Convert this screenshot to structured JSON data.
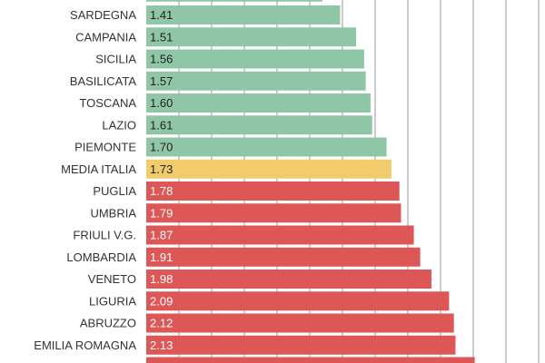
{
  "chart_data": {
    "type": "bar",
    "orientation": "horizontal",
    "title": "",
    "xlabel": "",
    "ylabel": "",
    "xlim": [
      0.2,
      2.3
    ],
    "grid": true,
    "categories": [
      "SARDEGNA",
      "CAMPANIA",
      "SICILIA",
      "BASILICATA",
      "TOSCANA",
      "LAZIO",
      "PIEMONTE",
      "MEDIA ITALIA",
      "PUGLIA",
      "UMBRIA",
      "FRIULI V.G.",
      "LOMBARDIA",
      "VENETO",
      "LIGURIA",
      "ABRUZZO",
      "EMILIA ROMAGNA"
    ],
    "values": [
      1.41,
      1.51,
      1.56,
      1.57,
      1.6,
      1.61,
      1.7,
      1.73,
      1.78,
      1.79,
      1.87,
      1.91,
      1.98,
      2.09,
      2.12,
      2.13
    ],
    "value_labels": [
      "1.41",
      "1.51",
      "1.56",
      "1.57",
      "1.60",
      "1.61",
      "1.70",
      "1.73",
      "1.78",
      "1.79",
      "1.87",
      "1.91",
      "1.98",
      "2.09",
      "2.12",
      "2.13"
    ],
    "partial_bars_top": [
      1.3
    ],
    "partial_bars_bottom": [
      2.25
    ],
    "colors": {
      "below_average": "#8fc7a6",
      "average": "#f2cb6b",
      "above_average": "#dd5757"
    },
    "bar_color_groups": [
      "below_average",
      "below_average",
      "below_average",
      "below_average",
      "below_average",
      "below_average",
      "below_average",
      "average",
      "above_average",
      "above_average",
      "above_average",
      "above_average",
      "above_average",
      "above_average",
      "above_average",
      "above_average"
    ]
  }
}
